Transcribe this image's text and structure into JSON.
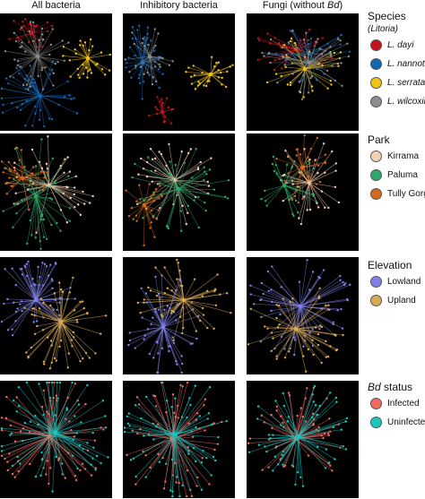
{
  "columns": [
    {
      "title": "All bacteria",
      "title_parts": [
        {
          "text": "All bacteria",
          "italic": false
        }
      ]
    },
    {
      "title": "Inhibitory bacteria",
      "title_parts": [
        {
          "text": "Inhibitory bacteria",
          "italic": false
        }
      ]
    },
    {
      "title": "Fungi (without Bd)",
      "title_parts": [
        {
          "text": "Fungi (without ",
          "italic": false
        },
        {
          "text": "Bd",
          "italic": true
        },
        {
          "text": ")",
          "italic": false
        }
      ]
    }
  ],
  "rows": [
    {
      "legend_title_parts": [
        {
          "text": "Species",
          "italic": false
        }
      ],
      "legend_subtitle": "(Litoria)",
      "items": [
        {
          "label": "L. dayi",
          "italic": true,
          "color": "#c0141c"
        },
        {
          "label": "L. nannotis",
          "italic": true,
          "color": "#1466b0"
        },
        {
          "label": "L. serrata",
          "italic": true,
          "color": "#f2c417"
        },
        {
          "label": "L. wilcoxii",
          "italic": true,
          "color": "#8c8c8c"
        }
      ]
    },
    {
      "legend_title_parts": [
        {
          "text": "Park",
          "italic": false
        }
      ],
      "legend_subtitle": "",
      "items": [
        {
          "label": "Kirrama",
          "italic": false,
          "color": "#f3d1b4"
        },
        {
          "label": "Paluma",
          "italic": false,
          "color": "#2fa66a"
        },
        {
          "label": "Tully Gorge",
          "italic": false,
          "color": "#d2691e"
        }
      ]
    },
    {
      "legend_title_parts": [
        {
          "text": "Elevation",
          "italic": false
        }
      ],
      "legend_subtitle": "",
      "items": [
        {
          "label": "Lowland",
          "italic": false,
          "color": "#8080e6"
        },
        {
          "label": "Upland",
          "italic": false,
          "color": "#d9aa55"
        }
      ]
    },
    {
      "legend_title_parts": [
        {
          "text": "Bd",
          "italic": true
        },
        {
          "text": " status",
          "italic": false
        }
      ],
      "legend_subtitle": "",
      "items": [
        {
          "label": "Infected",
          "italic": false,
          "color": "#f26b63"
        },
        {
          "label": "Uninfected",
          "italic": false,
          "color": "#17c7c0"
        }
      ]
    }
  ]
}
